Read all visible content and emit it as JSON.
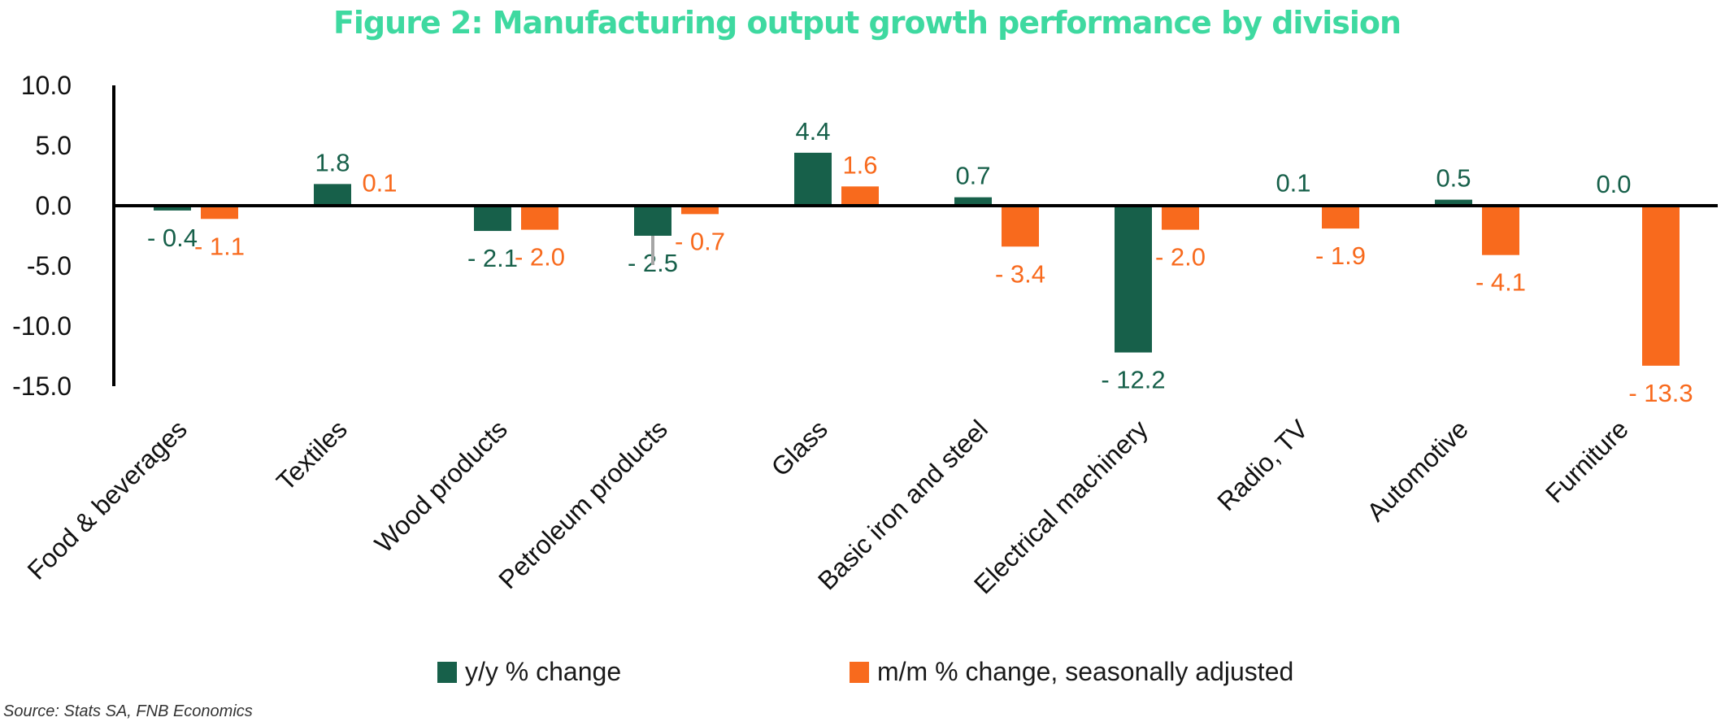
{
  "title": "Figure 2: Manufacturing output growth performance by division",
  "source": "Source: Stats SA, FNB Economics",
  "legend": {
    "series_0": "y/y % change",
    "series_1": "m/m % change, seasonally adjusted"
  },
  "colors": {
    "title": "#3ed9a0",
    "series_0": "#17604a",
    "series_1": "#f86a1d",
    "axis": "#000000"
  },
  "chart_data": {
    "type": "bar",
    "categories": [
      "Food & beverages",
      "Textiles",
      "Wood products",
      "Petroleum products",
      "Glass",
      "Basic iron and steel",
      "Electrical machinery",
      "Radio, TV",
      "Automotive",
      "Furniture"
    ],
    "series": [
      {
        "name": "y/y % change",
        "values": [
          -0.4,
          1.8,
          -2.1,
          -2.5,
          4.4,
          0.7,
          -12.2,
          0.1,
          0.5,
          0.0
        ],
        "labels": [
          "- 0.4",
          "1.8",
          "- 2.1",
          "- 2.5",
          "4.4",
          "0.7",
          "- 12.2",
          "0.1",
          "0.5",
          "0.0"
        ]
      },
      {
        "name": "m/m % change, seasonally adjusted",
        "values": [
          -1.1,
          0.1,
          -2.0,
          -0.7,
          1.6,
          -3.4,
          -2.0,
          -1.9,
          -4.1,
          -13.3
        ],
        "labels": [
          "- 1.1",
          "0.1",
          "- 2.0",
          "- 0.7",
          "1.6",
          "- 3.4",
          "- 2.0",
          "- 1.9",
          "- 4.1",
          "- 13.3"
        ]
      }
    ],
    "y_ticks": [
      10.0,
      5.0,
      0.0,
      -5.0,
      -10.0,
      -15.0
    ],
    "y_tick_labels": [
      "10.0",
      "5.0",
      "0.0",
      "-5.0",
      "-10.0",
      "-15.0"
    ],
    "ylim": [
      -15,
      10
    ],
    "xlabel": "",
    "ylabel": "",
    "grid": false,
    "legend_position": "bottom"
  }
}
